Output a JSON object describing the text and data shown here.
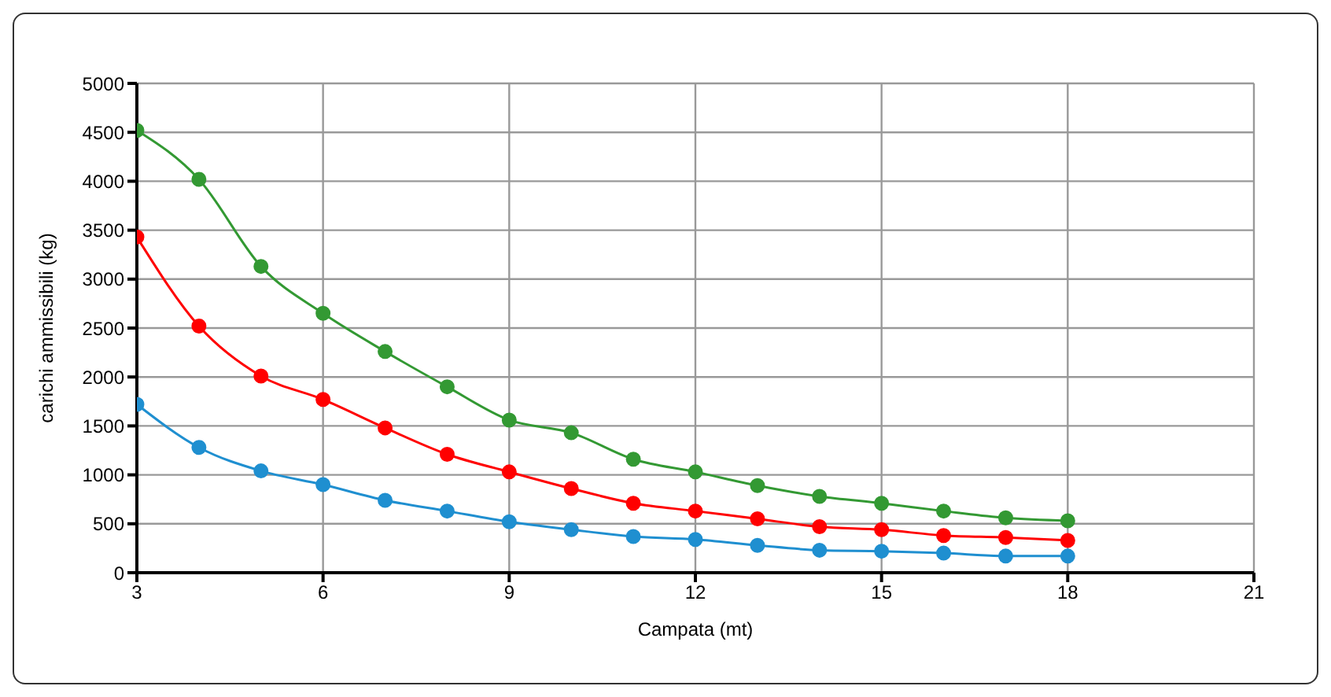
{
  "chart_data": {
    "type": "line",
    "xlabel": "Campata (mt)",
    "ylabel": "carichi ammissibili  (kg)",
    "x": [
      3,
      4,
      5,
      6,
      7,
      8,
      9,
      10,
      11,
      12,
      13,
      14,
      15,
      16,
      17,
      18
    ],
    "series": [
      {
        "color": "#339933",
        "values": [
          4520,
          4020,
          3130,
          2650,
          2260,
          1900,
          1560,
          1430,
          1160,
          1030,
          890,
          780,
          710,
          630,
          560,
          530
        ]
      },
      {
        "color": "#ff0000",
        "values": [
          3430,
          2520,
          2010,
          1770,
          1480,
          1210,
          1030,
          860,
          710,
          630,
          550,
          470,
          440,
          380,
          360,
          330
        ]
      },
      {
        "color": "#1f8fd0",
        "values": [
          1720,
          1280,
          1040,
          900,
          740,
          630,
          520,
          440,
          370,
          340,
          280,
          230,
          220,
          200,
          170,
          170
        ]
      }
    ],
    "xlim": [
      3,
      21
    ],
    "xticks": [
      3,
      6,
      9,
      12,
      15,
      18,
      21
    ],
    "ylim": [
      0,
      5000
    ],
    "yticks": [
      0,
      500,
      1000,
      1500,
      2000,
      2500,
      3000,
      3500,
      4000,
      4500,
      5000
    ],
    "grid": true,
    "marker": "circle",
    "line_style": "solid"
  }
}
